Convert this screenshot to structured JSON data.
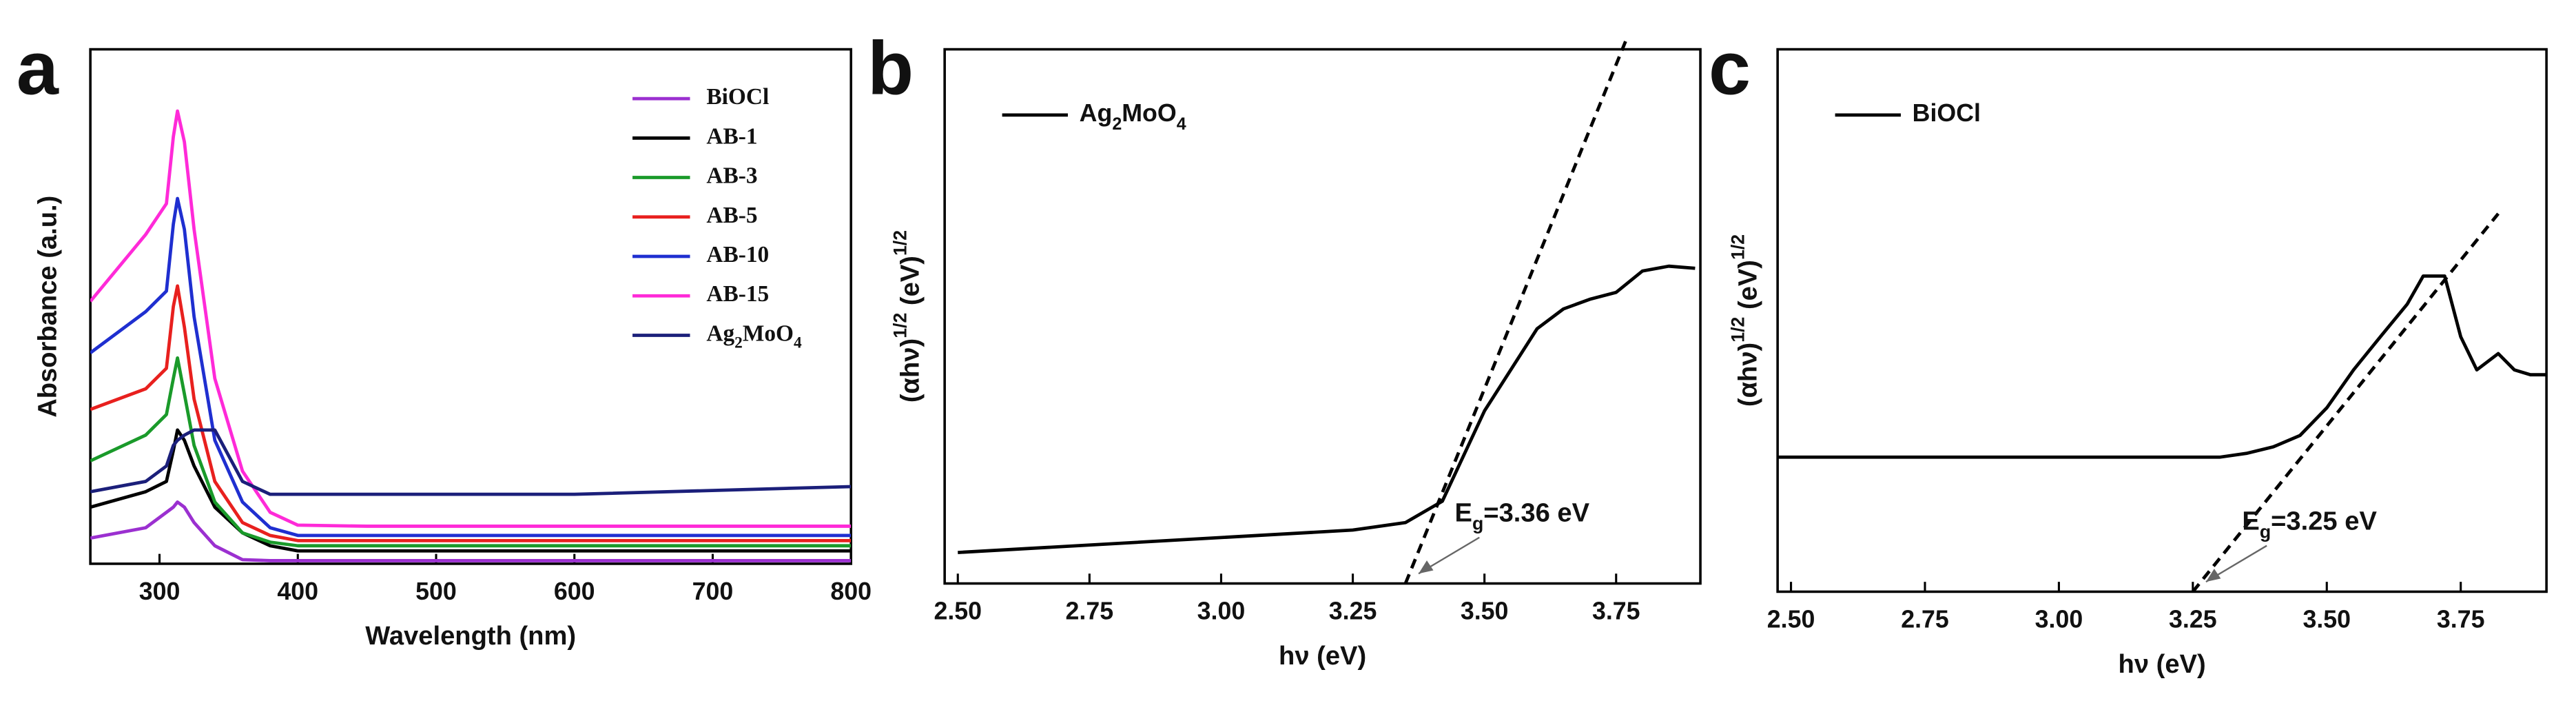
{
  "chart_data": [
    {
      "type": "line",
      "panel_label": "a",
      "xlabel": "Wavelength (nm)",
      "ylabel": "Absorbance (a.u.)",
      "xlim": [
        250,
        800
      ],
      "ylim": [
        0,
        10
      ],
      "xticks": [
        300,
        400,
        500,
        600,
        700,
        800
      ],
      "legend": "upper right",
      "x": [
        250,
        290,
        305,
        310,
        313,
        318,
        325,
        340,
        360,
        380,
        400,
        450,
        600,
        800
      ],
      "series": [
        {
          "name": "BiOCl",
          "color": "#9b30d0",
          "values": [
            0.5,
            0.7,
            1.0,
            1.1,
            1.2,
            1.1,
            0.8,
            0.35,
            0.08,
            0.06,
            0.06,
            0.06,
            0.06,
            0.06
          ]
        },
        {
          "name": "AB-1",
          "color": "#000000",
          "values": [
            1.1,
            1.4,
            1.6,
            2.2,
            2.6,
            2.4,
            1.9,
            1.1,
            0.6,
            0.35,
            0.25,
            0.25,
            0.25,
            0.25
          ]
        },
        {
          "name": "AB-3",
          "color": "#1a9a2a",
          "values": [
            2.0,
            2.5,
            2.9,
            3.6,
            4.0,
            3.3,
            2.3,
            1.2,
            0.6,
            0.42,
            0.35,
            0.35,
            0.35,
            0.35
          ]
        },
        {
          "name": "AB-5",
          "color": "#e8201e",
          "values": [
            3.0,
            3.4,
            3.8,
            5.0,
            5.4,
            4.6,
            3.2,
            1.6,
            0.8,
            0.55,
            0.45,
            0.45,
            0.45,
            0.45
          ]
        },
        {
          "name": "AB-10",
          "color": "#1f2fd0",
          "values": [
            4.1,
            4.9,
            5.3,
            6.6,
            7.1,
            6.5,
            4.8,
            2.4,
            1.2,
            0.7,
            0.55,
            0.55,
            0.55,
            0.55
          ]
        },
        {
          "name": "AB-15",
          "color": "#ff2ad8",
          "values": [
            5.1,
            6.4,
            7.0,
            8.3,
            8.8,
            8.2,
            6.5,
            3.6,
            1.8,
            1.0,
            0.75,
            0.73,
            0.73,
            0.73
          ]
        },
        {
          "name": "Ag2MoO4",
          "color": "#1b1f7a",
          "values": [
            1.4,
            1.6,
            1.9,
            2.3,
            2.4,
            2.5,
            2.6,
            2.6,
            1.6,
            1.35,
            1.35,
            1.35,
            1.35,
            1.5
          ]
        }
      ]
    },
    {
      "type": "line",
      "panel_label": "b",
      "xlabel": "hν (eV)",
      "ylabel": "(αhν)1/2 (eV)1/2",
      "xlim": [
        2.475,
        3.91
      ],
      "ylim": [
        0,
        10
      ],
      "legend": "upper left",
      "xticks": [
        {
          "value": 2.5,
          "label": "2.50"
        },
        {
          "value": 2.75,
          "label": "2.75"
        },
        {
          "value": 3.0,
          "label": "3.00"
        },
        {
          "value": 3.25,
          "label": "3.25"
        },
        {
          "value": 3.5,
          "label": "3.50"
        },
        {
          "value": 3.75,
          "label": "3.75"
        }
      ],
      "x": [
        2.5,
        3.25,
        3.35,
        3.42,
        3.5,
        3.6,
        3.65,
        3.7,
        3.75,
        3.8,
        3.85,
        3.9
      ],
      "series": [
        {
          "name": "Ag2MoO4",
          "color": "#000000",
          "values": [
            0.58,
            1.0,
            1.14,
            1.54,
            3.23,
            4.77,
            5.14,
            5.32,
            5.45,
            5.85,
            5.94,
            5.9
          ]
        }
      ],
      "tangent": {
        "x": [
          3.35,
          3.77
        ],
        "values": [
          0,
          10.2
        ]
      },
      "annotation": "Eg=3.36 eV"
    },
    {
      "type": "line",
      "panel_label": "c",
      "xlabel": "hν (eV)",
      "ylabel": "(αhν)1/2 (eV)1/2",
      "xlim": [
        2.475,
        3.91
      ],
      "ylim": [
        0,
        10
      ],
      "legend": "upper left",
      "xticks": [
        {
          "value": 2.5,
          "label": "2.50"
        },
        {
          "value": 2.75,
          "label": "2.75"
        },
        {
          "value": 3.0,
          "label": "3.00"
        },
        {
          "value": 3.25,
          "label": "3.25"
        },
        {
          "value": 3.5,
          "label": "3.50"
        },
        {
          "value": 3.75,
          "label": "3.75"
        }
      ],
      "x": [
        2.475,
        3.3,
        3.35,
        3.4,
        3.45,
        3.5,
        3.55,
        3.6,
        3.65,
        3.68,
        3.72,
        3.75,
        3.78,
        3.82,
        3.85,
        3.88,
        3.91
      ],
      "series": [
        {
          "name": "BiOCl",
          "color": "#000000",
          "values": [
            2.48,
            2.48,
            2.55,
            2.67,
            2.88,
            3.39,
            4.09,
            4.7,
            5.3,
            5.82,
            5.82,
            4.7,
            4.09,
            4.39,
            4.09,
            4.0,
            4.0
          ]
        }
      ],
      "tangent": {
        "x": [
          3.25,
          3.82
        ],
        "values": [
          0,
          6.97
        ]
      },
      "annotation": "Eg=3.25 eV"
    }
  ]
}
